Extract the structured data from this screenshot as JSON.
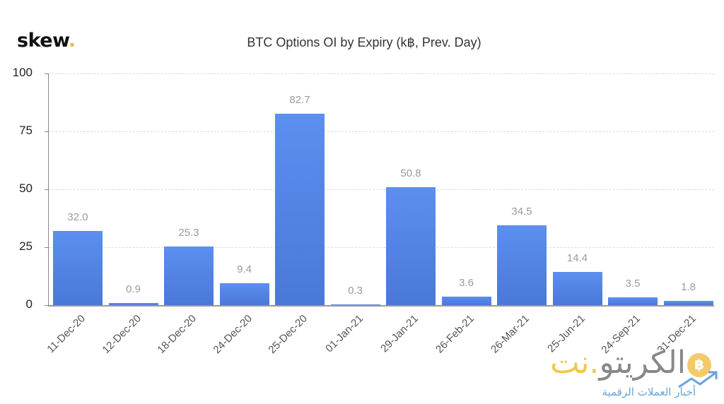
{
  "header": {
    "logo_text": "skew",
    "logo_dot": ".",
    "title": "BTC Options OI by Expiry (k฿, Prev. Day)"
  },
  "colors": {
    "bar_top": "#5b8ff0",
    "bar_bottom": "#4a78d8",
    "logo_dot": "#e8b84a",
    "value_label": "#9a9a9a"
  },
  "y_ticks": [
    "100",
    "75",
    "50",
    "25",
    "0"
  ],
  "bars": [
    {
      "label": "11-Dec-20",
      "value": "32.0"
    },
    {
      "label": "12-Dec-20",
      "value": "0.9"
    },
    {
      "label": "18-Dec-20",
      "value": "25.3"
    },
    {
      "label": "24-Dec-20",
      "value": "9.4"
    },
    {
      "label": "25-Dec-20",
      "value": "82.7"
    },
    {
      "label": "01-Jan-21",
      "value": "0.3"
    },
    {
      "label": "29-Jan-21",
      "value": "50.8"
    },
    {
      "label": "26-Feb-21",
      "value": "3.6"
    },
    {
      "label": "26-Mar-21",
      "value": "34.5"
    },
    {
      "label": "25-Jun-21",
      "value": "14.4"
    },
    {
      "label": "24-Sep-21",
      "value": "3.5"
    },
    {
      "label": "31-Dec-21",
      "value": "1.8"
    }
  ],
  "watermark": {
    "main_gray": "الكريتو",
    "main_yellow": ".نت",
    "sub": "أخبار العملات الرقمية",
    "coin_icon": "฿"
  },
  "chart_data": {
    "type": "bar",
    "title": "BTC Options OI by Expiry (k฿, Prev. Day)",
    "xlabel": "",
    "ylabel": "",
    "categories": [
      "11-Dec-20",
      "12-Dec-20",
      "18-Dec-20",
      "24-Dec-20",
      "25-Dec-20",
      "01-Jan-21",
      "29-Jan-21",
      "26-Feb-21",
      "26-Mar-21",
      "25-Jun-21",
      "24-Sep-21",
      "31-Dec-21"
    ],
    "values": [
      32.0,
      0.9,
      25.3,
      9.4,
      82.7,
      0.3,
      50.8,
      3.6,
      34.5,
      14.4,
      3.5,
      1.8
    ],
    "ylim": [
      0,
      100
    ],
    "yticks": [
      0,
      25,
      50,
      75,
      100
    ],
    "grid": true,
    "legend": null,
    "data_labels": true
  }
}
